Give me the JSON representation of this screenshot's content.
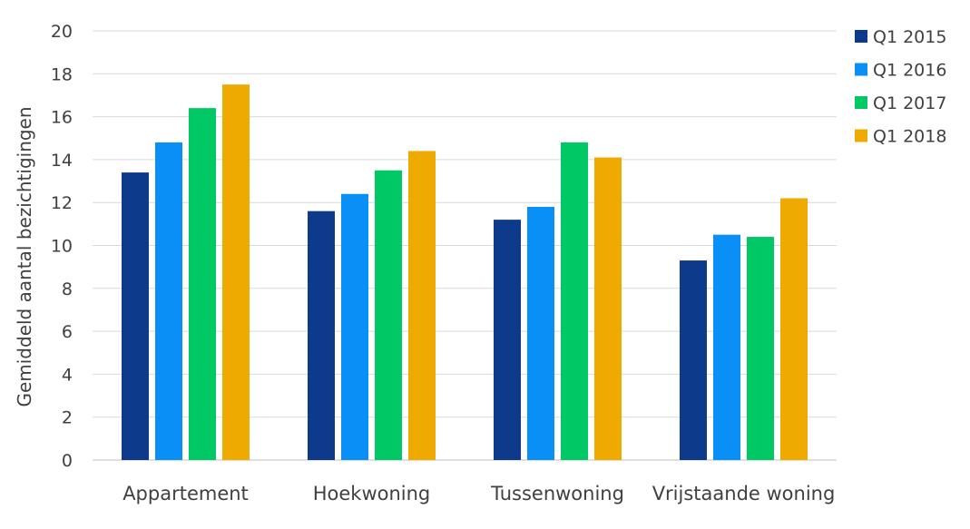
{
  "chart_data": {
    "type": "bar",
    "title": "",
    "xlabel": "",
    "ylabel": "Gemiddeld aantal bezichtigingen",
    "ylim": [
      0,
      20
    ],
    "yticks": [
      0,
      2,
      4,
      6,
      8,
      10,
      12,
      14,
      16,
      18,
      20
    ],
    "grid": true,
    "legend_position": "top-right",
    "categories": [
      "Appartement",
      "Hoekwoning",
      "Tussenwoning",
      "Vrijstaande woning"
    ],
    "series": [
      {
        "name": "Q1 2015",
        "color": "#0d3a8a",
        "values": [
          13.4,
          11.6,
          11.2,
          9.3
        ]
      },
      {
        "name": "Q1 2016",
        "color": "#0a8ff7",
        "values": [
          14.8,
          12.4,
          11.8,
          10.5
        ]
      },
      {
        "name": "Q1 2017",
        "color": "#00c864",
        "values": [
          16.4,
          13.5,
          14.8,
          10.4
        ]
      },
      {
        "name": "Q1 2018",
        "color": "#eeaa00",
        "values": [
          17.5,
          14.4,
          14.1,
          12.2
        ]
      }
    ]
  }
}
